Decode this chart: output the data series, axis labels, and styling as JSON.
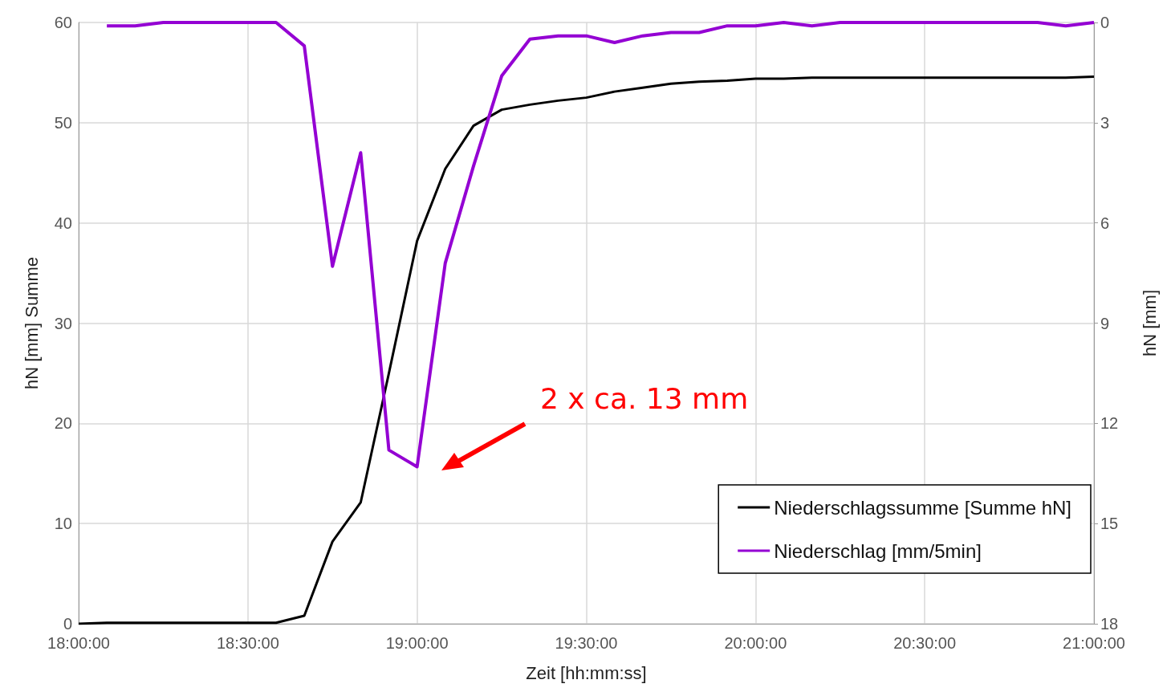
{
  "chart_data": {
    "type": "line",
    "xlabel": "Zeit [hh:mm:ss]",
    "ylabel": "hN [mm] Summe",
    "y2label": "hN [mm]",
    "x": [
      18,
      18.0833,
      18.1667,
      18.25,
      18.3333,
      18.4167,
      18.5,
      18.5833,
      18.6667,
      18.75,
      18.8333,
      18.9167,
      19,
      19.0833,
      19.1667,
      19.25,
      19.3333,
      19.4167,
      19.5,
      19.5833,
      19.6667,
      19.75,
      19.8333,
      19.9167,
      20,
      20.0833,
      20.1667,
      20.25,
      20.3333,
      20.4167,
      20.5,
      20.5833,
      20.6667,
      20.75,
      20.8333,
      20.9167,
      21
    ],
    "series": [
      {
        "name": "Niederschlagssumme [Summe hN]",
        "color": "#000000",
        "values": [
          0,
          0.1,
          0.1,
          0.1,
          0.1,
          0.1,
          0.1,
          0.1,
          0.8,
          8.2,
          12.1,
          25,
          38.2,
          45.4,
          49.7,
          51.3,
          51.8,
          52.2,
          52.5,
          53.1,
          53.5,
          53.9,
          54.1,
          54.2,
          54.4,
          54.4,
          54.5,
          54.5,
          54.5,
          54.5,
          54.5,
          54.5,
          54.5,
          54.5,
          54.5,
          54.5,
          54.6
        ]
      },
      {
        "name": "Niederschlag [mm/5min]",
        "color": "#9400d3",
        "axis": "y2",
        "values": [
          null,
          0.1,
          0.1,
          0,
          0,
          0,
          0,
          0,
          0.7,
          7.3,
          3.9,
          12.8,
          13.3,
          7.2,
          4.3,
          1.6,
          0.5,
          0.4,
          0.4,
          0.6,
          0.4,
          0.3,
          0.3,
          0.1,
          0.1,
          0,
          0.1,
          0,
          0,
          0,
          0,
          0,
          0,
          0,
          0,
          0.1,
          0
        ]
      }
    ],
    "xlim": [
      18,
      21
    ],
    "xticks": [
      {
        "value": 18,
        "label": "18:00:00"
      },
      {
        "value": 18.5,
        "label": "18:30:00"
      },
      {
        "value": 19,
        "label": "19:00:00"
      },
      {
        "value": 19.5,
        "label": "19:30:00"
      },
      {
        "value": 20,
        "label": "20:00:00"
      },
      {
        "value": 20.5,
        "label": "20:30:00"
      },
      {
        "value": 21,
        "label": "21:00:00"
      }
    ],
    "ylim": [
      0,
      60
    ],
    "yticks": [
      0,
      10,
      20,
      30,
      40,
      50,
      60
    ],
    "y2lim": [
      18,
      0
    ],
    "y2ticks": [
      0,
      3,
      6,
      9,
      12,
      15,
      18
    ],
    "annotations": [
      "2 x ca. 13 mm"
    ],
    "grid": true,
    "legend": "bottom right",
    "marker": "none",
    "line_style": "solid"
  }
}
